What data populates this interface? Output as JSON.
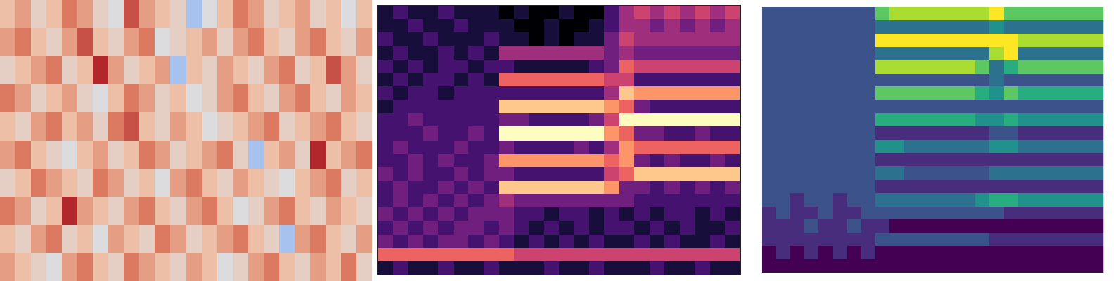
{
  "chart_data": [
    {
      "type": "heatmap",
      "color": "coolwarm",
      "tick_labels": false,
      "cells": [
        [
          4,
          5,
          3,
          4,
          6,
          5,
          3,
          2,
          7,
          5,
          4,
          3,
          0,
          2,
          4,
          6,
          5,
          3,
          4,
          5,
          3,
          4,
          2,
          4
        ],
        [
          5,
          6,
          4,
          3,
          5,
          7,
          4,
          3,
          5,
          6,
          2,
          3,
          4,
          5,
          3,
          5,
          6,
          4,
          3,
          5,
          6,
          4,
          3,
          5
        ],
        [
          3,
          4,
          5,
          6,
          3,
          4,
          8,
          5,
          3,
          4,
          5,
          0,
          4,
          3,
          5,
          4,
          3,
          5,
          6,
          3,
          4,
          7,
          5,
          3
        ],
        [
          6,
          5,
          3,
          4,
          5,
          3,
          2,
          4,
          6,
          5,
          3,
          4,
          2,
          3,
          5,
          6,
          4,
          3,
          5,
          6,
          4,
          3,
          5,
          4
        ],
        [
          4,
          3,
          5,
          6,
          4,
          5,
          3,
          6,
          7,
          4,
          3,
          5,
          4,
          2,
          3,
          4,
          5,
          6,
          3,
          4,
          5,
          6,
          4,
          3
        ],
        [
          5,
          6,
          4,
          3,
          2,
          4,
          5,
          3,
          4,
          6,
          5,
          3,
          4,
          5,
          6,
          3,
          0,
          4,
          5,
          3,
          8,
          4,
          5,
          6
        ],
        [
          3,
          4,
          6,
          5,
          4,
          3,
          6,
          5,
          3,
          4,
          2,
          5,
          6,
          4,
          3,
          5,
          4,
          3,
          2,
          4,
          5,
          6,
          3,
          4
        ],
        [
          6,
          5,
          3,
          4,
          8,
          5,
          4,
          3,
          5,
          6,
          4,
          3,
          5,
          6,
          4,
          2,
          3,
          5,
          6,
          4,
          3,
          5,
          4,
          3
        ],
        [
          4,
          3,
          5,
          6,
          3,
          4,
          2,
          5,
          4,
          3,
          6,
          5,
          3,
          4,
          5,
          6,
          4,
          3,
          0,
          5,
          6,
          4,
          3,
          5
        ],
        [
          5,
          4,
          3,
          2,
          5,
          6,
          4,
          3,
          6,
          5,
          4,
          3,
          5,
          4,
          2,
          3,
          5,
          6,
          4,
          3,
          5,
          4,
          6,
          3
        ]
      ]
    },
    {
      "type": "heatmap",
      "color": "magma",
      "tick_labels": false,
      "cells": [
        [
          1,
          2,
          1,
          1,
          2,
          1,
          1,
          1,
          0,
          1,
          0,
          0,
          1,
          0,
          0,
          2,
          4,
          5,
          4,
          5,
          4,
          5,
          4,
          5
        ],
        [
          1,
          1,
          2,
          1,
          1,
          2,
          1,
          1,
          1,
          0,
          0,
          1,
          0,
          0,
          1,
          2,
          4,
          4,
          3,
          4,
          3,
          4,
          3,
          4
        ],
        [
          2,
          1,
          1,
          2,
          1,
          1,
          1,
          2,
          1,
          1,
          0,
          1,
          0,
          1,
          1,
          3,
          5,
          4,
          4,
          4,
          4,
          4,
          4,
          4
        ],
        [
          1,
          2,
          1,
          1,
          2,
          1,
          2,
          1,
          4,
          4,
          4,
          4,
          4,
          4,
          4,
          3,
          4,
          3,
          3,
          3,
          3,
          3,
          3,
          3
        ],
        [
          2,
          1,
          2,
          1,
          2,
          2,
          1,
          2,
          2,
          1,
          1,
          1,
          1,
          1,
          2,
          3,
          6,
          5,
          5,
          5,
          5,
          5,
          5,
          5
        ],
        [
          1,
          2,
          1,
          2,
          2,
          1,
          2,
          1,
          6,
          6,
          6,
          6,
          6,
          6,
          6,
          5,
          5,
          2,
          2,
          2,
          2,
          2,
          2,
          2
        ],
        [
          2,
          1,
          2,
          2,
          1,
          2,
          2,
          2,
          2,
          2,
          2,
          2,
          2,
          2,
          2,
          4,
          8,
          7,
          7,
          7,
          7,
          7,
          7,
          7
        ],
        [
          1,
          2,
          2,
          2,
          2,
          2,
          2,
          2,
          8,
          8,
          8,
          8,
          8,
          8,
          8,
          7,
          6,
          3,
          2,
          2,
          2,
          2,
          2,
          2
        ],
        [
          2,
          2,
          3,
          2,
          2,
          2,
          2,
          2,
          3,
          3,
          2,
          2,
          2,
          2,
          3,
          5,
          9,
          9,
          9,
          9,
          9,
          9,
          9,
          9
        ],
        [
          2,
          2,
          2,
          3,
          2,
          2,
          3,
          2,
          9,
          9,
          9,
          9,
          9,
          9,
          9,
          7,
          6,
          3,
          3,
          2,
          2,
          3,
          2,
          2
        ],
        [
          2,
          3,
          2,
          2,
          2,
          3,
          2,
          2,
          3,
          2,
          2,
          2,
          2,
          3,
          2,
          4,
          7,
          6,
          6,
          6,
          6,
          6,
          6,
          6
        ],
        [
          2,
          2,
          3,
          2,
          3,
          2,
          2,
          3,
          7,
          7,
          7,
          7,
          7,
          7,
          7,
          6,
          7,
          3,
          2,
          3,
          2,
          2,
          3,
          2
        ],
        [
          3,
          2,
          3,
          2,
          2,
          3,
          2,
          3,
          3,
          2,
          2,
          2,
          2,
          2,
          2,
          5,
          6,
          8,
          8,
          8,
          8,
          8,
          8,
          8
        ],
        [
          2,
          3,
          2,
          2,
          3,
          2,
          3,
          2,
          8,
          8,
          8,
          8,
          8,
          8,
          8,
          7,
          3,
          3,
          2,
          3,
          2,
          3,
          2,
          3
        ],
        [
          2,
          3,
          2,
          3,
          2,
          3,
          2,
          3,
          4,
          3,
          3,
          3,
          3,
          3,
          3,
          3,
          3,
          2,
          2,
          2,
          2,
          2,
          2,
          2
        ],
        [
          3,
          2,
          3,
          2,
          3,
          2,
          3,
          3,
          3,
          2,
          2,
          1,
          2,
          2,
          1,
          2,
          1,
          2,
          1,
          2,
          2,
          1,
          2,
          1
        ],
        [
          2,
          3,
          2,
          3,
          2,
          3,
          3,
          2,
          3,
          2,
          1,
          2,
          1,
          2,
          1,
          2,
          2,
          1,
          2,
          1,
          2,
          1,
          1,
          2
        ],
        [
          3,
          2,
          3,
          2,
          3,
          3,
          2,
          3,
          2,
          1,
          2,
          1,
          2,
          1,
          2,
          1,
          1,
          2,
          1,
          2,
          1,
          1,
          2,
          1
        ],
        [
          6,
          6,
          6,
          6,
          6,
          6,
          6,
          6,
          6,
          5,
          5,
          5,
          5,
          5,
          5,
          5,
          5,
          5,
          5,
          5,
          5,
          5,
          5,
          5
        ],
        [
          1,
          2,
          1,
          1,
          2,
          1,
          1,
          2,
          1,
          1,
          1,
          2,
          1,
          1,
          2,
          1,
          1,
          1,
          2,
          1,
          1,
          2,
          1,
          1
        ]
      ]
    },
    {
      "type": "heatmap",
      "color": "viridis",
      "tick_labels": false,
      "cells": [
        [
          3,
          3,
          3,
          3,
          3,
          3,
          3,
          3,
          7,
          8,
          8,
          8,
          8,
          8,
          8,
          8,
          9,
          7,
          7,
          7,
          7,
          7,
          7,
          7
        ],
        [
          3,
          3,
          3,
          3,
          3,
          3,
          3,
          3,
          4,
          4,
          4,
          4,
          4,
          4,
          4,
          4,
          5,
          4,
          4,
          4,
          4,
          4,
          4,
          4
        ],
        [
          3,
          3,
          3,
          3,
          3,
          3,
          3,
          3,
          9,
          9,
          9,
          9,
          9,
          9,
          9,
          9,
          9,
          9,
          8,
          8,
          8,
          8,
          8,
          8
        ],
        [
          3,
          3,
          3,
          3,
          3,
          3,
          3,
          3,
          4,
          4,
          4,
          4,
          4,
          4,
          4,
          4,
          8,
          9,
          4,
          4,
          4,
          4,
          4,
          4
        ],
        [
          3,
          3,
          3,
          3,
          3,
          3,
          3,
          3,
          8,
          8,
          8,
          8,
          8,
          8,
          8,
          7,
          4,
          6,
          7,
          7,
          7,
          7,
          7,
          7
        ],
        [
          3,
          3,
          3,
          3,
          3,
          3,
          3,
          3,
          3,
          3,
          3,
          3,
          3,
          3,
          3,
          3,
          4,
          3,
          3,
          3,
          3,
          3,
          3,
          3
        ],
        [
          3,
          3,
          3,
          3,
          3,
          3,
          3,
          3,
          7,
          7,
          7,
          7,
          7,
          7,
          7,
          6,
          5,
          7,
          6,
          6,
          6,
          6,
          6,
          6
        ],
        [
          3,
          3,
          3,
          3,
          3,
          3,
          3,
          3,
          3,
          3,
          3,
          3,
          3,
          3,
          3,
          3,
          3,
          3,
          3,
          3,
          3,
          3,
          3,
          3
        ],
        [
          3,
          3,
          3,
          3,
          3,
          3,
          3,
          3,
          6,
          6,
          6,
          6,
          6,
          6,
          6,
          5,
          5,
          6,
          5,
          5,
          5,
          5,
          5,
          5
        ],
        [
          3,
          3,
          3,
          3,
          3,
          3,
          3,
          3,
          2,
          2,
          2,
          2,
          2,
          2,
          2,
          2,
          3,
          3,
          2,
          2,
          2,
          2,
          2,
          2
        ],
        [
          3,
          3,
          3,
          3,
          3,
          3,
          3,
          3,
          5,
          5,
          4,
          4,
          4,
          4,
          4,
          4,
          5,
          5,
          4,
          4,
          4,
          4,
          4,
          4
        ],
        [
          3,
          3,
          3,
          3,
          3,
          3,
          3,
          3,
          2,
          2,
          2,
          2,
          2,
          2,
          2,
          2,
          2,
          2,
          2,
          2,
          2,
          2,
          2,
          2
        ],
        [
          3,
          3,
          3,
          3,
          3,
          3,
          3,
          3,
          4,
          4,
          3,
          3,
          3,
          3,
          3,
          3,
          4,
          4,
          4,
          4,
          4,
          4,
          4,
          4
        ],
        [
          3,
          3,
          3,
          3,
          3,
          3,
          3,
          3,
          2,
          2,
          2,
          2,
          2,
          2,
          2,
          2,
          2,
          2,
          2,
          2,
          2,
          2,
          2,
          2
        ],
        [
          3,
          3,
          2,
          3,
          3,
          2,
          3,
          3,
          4,
          4,
          4,
          4,
          4,
          4,
          4,
          5,
          6,
          6,
          5,
          5,
          5,
          5,
          5,
          5
        ],
        [
          2,
          3,
          2,
          2,
          3,
          2,
          2,
          3,
          3,
          3,
          3,
          3,
          3,
          3,
          3,
          3,
          3,
          2,
          2,
          2,
          2,
          2,
          2,
          2
        ],
        [
          2,
          2,
          2,
          3,
          2,
          2,
          3,
          2,
          2,
          1,
          1,
          1,
          1,
          1,
          1,
          1,
          1,
          1,
          1,
          1,
          1,
          1,
          1,
          1
        ],
        [
          2,
          2,
          2,
          2,
          2,
          2,
          2,
          2,
          3,
          3,
          3,
          3,
          3,
          3,
          3,
          3,
          2,
          2,
          2,
          2,
          2,
          2,
          2,
          2
        ],
        [
          1,
          2,
          1,
          2,
          1,
          2,
          1,
          2,
          1,
          1,
          1,
          1,
          1,
          1,
          1,
          1,
          1,
          1,
          1,
          1,
          1,
          1,
          1,
          1
        ],
        [
          1,
          1,
          1,
          1,
          1,
          1,
          1,
          1,
          1,
          1,
          1,
          1,
          1,
          1,
          1,
          1,
          1,
          1,
          1,
          1,
          1,
          1,
          1,
          1
        ]
      ]
    }
  ]
}
